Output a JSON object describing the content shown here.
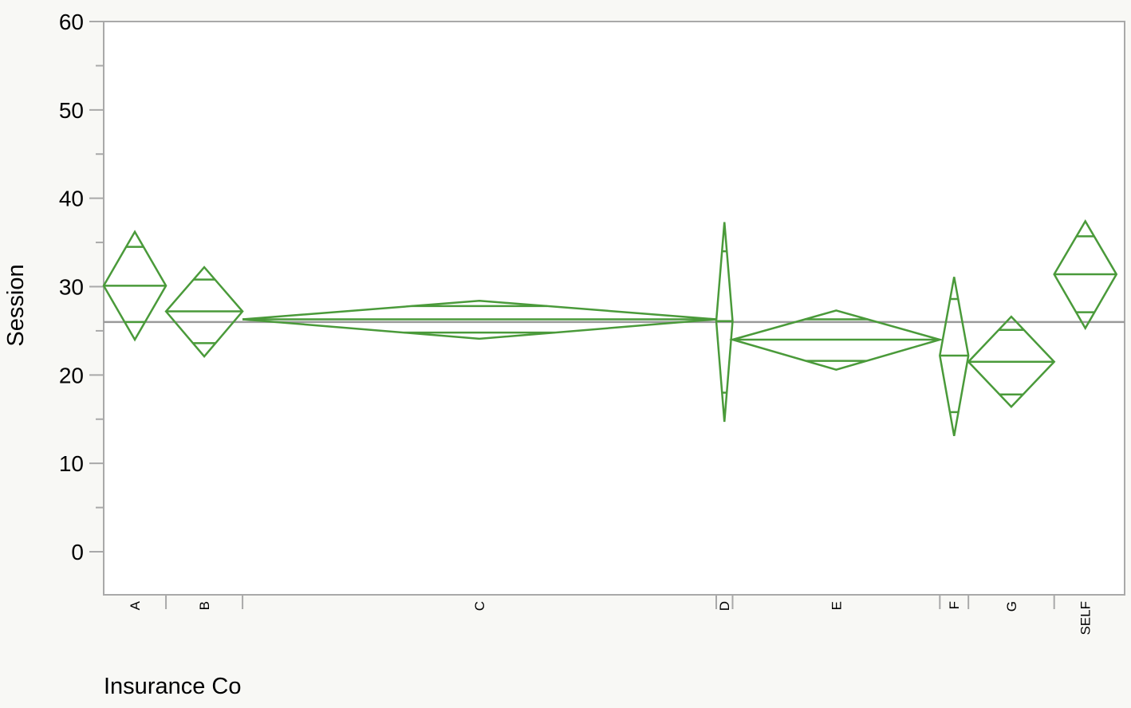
{
  "chart_data": {
    "type": "means-diamonds",
    "ylabel": "Session",
    "xlabel": "Insurance Co",
    "ylim": [
      -5,
      60
    ],
    "yticks": [
      0,
      10,
      20,
      30,
      40,
      50,
      60
    ],
    "grand_mean": 26.0,
    "groups": [
      {
        "name": "A",
        "mean": 30.1,
        "lower_ci": 24.0,
        "upper_ci": 36.2,
        "overlap_low": 26.0,
        "overlap_high": 34.5,
        "weight": 0.061
      },
      {
        "name": "B",
        "mean": 27.2,
        "lower_ci": 22.1,
        "upper_ci": 32.2,
        "overlap_low": 23.6,
        "overlap_high": 30.8,
        "weight": 0.075
      },
      {
        "name": "C",
        "mean": 26.3,
        "lower_ci": 24.1,
        "upper_ci": 28.4,
        "overlap_low": 24.8,
        "overlap_high": 27.8,
        "weight": 0.464
      },
      {
        "name": "D",
        "mean": 26.1,
        "lower_ci": 14.7,
        "upper_ci": 37.3,
        "overlap_low": 18.0,
        "overlap_high": 34.0,
        "weight": 0.016
      },
      {
        "name": "E",
        "mean": 24.0,
        "lower_ci": 20.6,
        "upper_ci": 27.3,
        "overlap_low": 21.6,
        "overlap_high": 26.3,
        "weight": 0.203
      },
      {
        "name": "F",
        "mean": 22.2,
        "lower_ci": 13.1,
        "upper_ci": 31.1,
        "overlap_low": 15.8,
        "overlap_high": 28.6,
        "weight": 0.028
      },
      {
        "name": "G",
        "mean": 21.5,
        "lower_ci": 16.4,
        "upper_ci": 26.6,
        "overlap_low": 17.8,
        "overlap_high": 25.1,
        "weight": 0.084
      },
      {
        "name": "SELF",
        "mean": 31.4,
        "lower_ci": 25.3,
        "upper_ci": 37.4,
        "overlap_low": 27.1,
        "overlap_high": 35.7,
        "weight": 0.061
      }
    ]
  }
}
